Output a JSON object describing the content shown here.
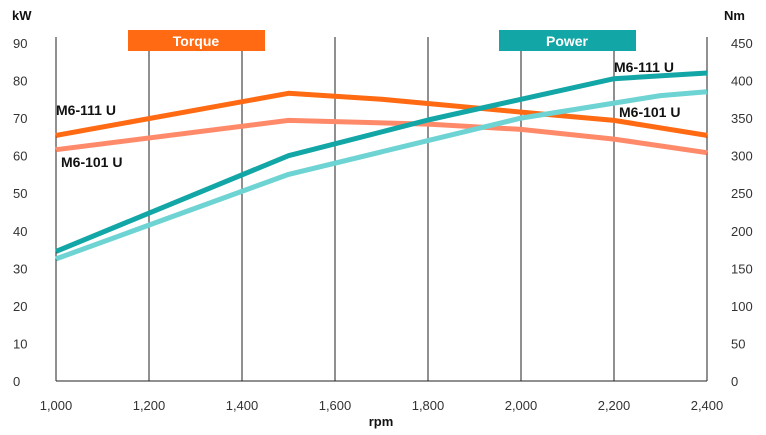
{
  "chart_data": {
    "type": "line",
    "xlabel": "rpm",
    "x_ticks": [
      "1,000",
      "1,200",
      "1,400",
      "1,600",
      "1,800",
      "2,000",
      "2,200",
      "2,400"
    ],
    "xlim": [
      1000,
      2400
    ],
    "y_left": {
      "unit": "kW",
      "lim": [
        0,
        90
      ],
      "ticks": [
        "0",
        "10",
        "20",
        "30",
        "40",
        "50",
        "60",
        "70",
        "80",
        "90"
      ]
    },
    "y_right": {
      "unit": "Nm",
      "lim": [
        0,
        450
      ],
      "ticks": [
        "0",
        "50",
        "100",
        "150",
        "200",
        "250",
        "300",
        "350",
        "400",
        "450"
      ]
    },
    "grid": "vertical",
    "legend": [
      {
        "label": "Torque",
        "color": "#ff6a13"
      },
      {
        "label": "Power",
        "color": "#13a6a6"
      }
    ],
    "series": [
      {
        "name": "M6-111 U",
        "group": "Torque",
        "axis": "right",
        "color": "#ff6a13",
        "x": [
          1000,
          1500,
          1700,
          2000,
          2200,
          2400
        ],
        "values": [
          327,
          383,
          375,
          358,
          347,
          327
        ]
      },
      {
        "name": "M6-101 U",
        "group": "Torque",
        "axis": "right",
        "color": "#ff8a6a",
        "x": [
          1000,
          1500,
          1800,
          2000,
          2200,
          2400
        ],
        "values": [
          308,
          347,
          342,
          335,
          322,
          304
        ]
      },
      {
        "name": "M6-111 U",
        "group": "Power",
        "axis": "left",
        "color": "#13a6a6",
        "x": [
          1000,
          1500,
          1800,
          2000,
          2200,
          2400
        ],
        "values": [
          34.5,
          60,
          69.5,
          75,
          80.5,
          82
        ]
      },
      {
        "name": "M6-101 U",
        "group": "Power",
        "axis": "left",
        "color": "#6ed3d3",
        "x": [
          1000,
          1500,
          1800,
          2000,
          2200,
          2300,
          2400
        ],
        "values": [
          32.5,
          55,
          64,
          70,
          74,
          76,
          77
        ]
      }
    ]
  }
}
